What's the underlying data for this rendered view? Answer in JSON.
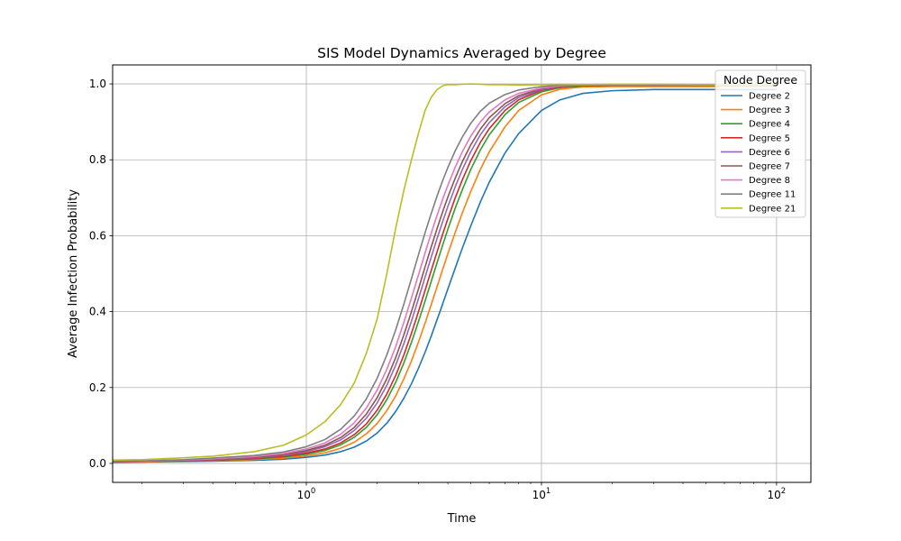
{
  "chart_data": {
    "type": "line",
    "title": "SIS Model Dynamics Averaged by Degree",
    "xlabel": "Time",
    "ylabel": "Average Infection Probability",
    "xscale": "log",
    "xlim": [
      0.15,
      140
    ],
    "ylim": [
      -0.05,
      1.05
    ],
    "x_ticks": [
      {
        "value": 1,
        "base": "10",
        "exp": "0"
      },
      {
        "value": 10,
        "base": "10",
        "exp": "1"
      },
      {
        "value": 100,
        "base": "10",
        "exp": "2"
      }
    ],
    "y_ticks": [
      {
        "value": 0.0,
        "label": "0.0"
      },
      {
        "value": 0.2,
        "label": "0.2"
      },
      {
        "value": 0.4,
        "label": "0.4"
      },
      {
        "value": 0.6,
        "label": "0.6"
      },
      {
        "value": 0.8,
        "label": "0.8"
      },
      {
        "value": 1.0,
        "label": "1.0"
      }
    ],
    "grid": true,
    "legend": {
      "title": "Node Degree",
      "placement": "top-right"
    },
    "x": [
      0.15,
      0.2,
      0.3,
      0.4,
      0.6,
      0.8,
      1.0,
      1.2,
      1.4,
      1.6,
      1.8,
      2.0,
      2.2,
      2.4,
      2.6,
      2.8,
      3.0,
      3.2,
      3.4,
      3.6,
      3.8,
      4.0,
      4.3,
      4.6,
      5.0,
      5.5,
      6.0,
      7.0,
      8.0,
      10.0,
      12.0,
      15.0,
      20.0,
      30.0,
      50.0,
      100.0
    ],
    "series": [
      {
        "name": "Degree 2",
        "color": "#1f77b4",
        "values": [
          0.003,
          0.004,
          0.005,
          0.006,
          0.008,
          0.011,
          0.016,
          0.022,
          0.031,
          0.043,
          0.059,
          0.08,
          0.106,
          0.137,
          0.172,
          0.21,
          0.251,
          0.293,
          0.336,
          0.379,
          0.42,
          0.46,
          0.515,
          0.566,
          0.625,
          0.689,
          0.741,
          0.818,
          0.869,
          0.93,
          0.958,
          0.975,
          0.982,
          0.985,
          0.985,
          0.985
        ]
      },
      {
        "name": "Degree 3",
        "color": "#ff7f0e",
        "values": [
          0.004,
          0.004,
          0.006,
          0.007,
          0.01,
          0.014,
          0.02,
          0.028,
          0.04,
          0.056,
          0.078,
          0.105,
          0.139,
          0.178,
          0.223,
          0.27,
          0.32,
          0.37,
          0.419,
          0.466,
          0.511,
          0.553,
          0.609,
          0.659,
          0.716,
          0.775,
          0.821,
          0.887,
          0.93,
          0.971,
          0.986,
          0.992,
          0.993,
          0.993,
          0.993,
          0.993
        ]
      },
      {
        "name": "Degree 4",
        "color": "#2ca02c",
        "values": [
          0.004,
          0.005,
          0.006,
          0.008,
          0.012,
          0.017,
          0.024,
          0.034,
          0.049,
          0.069,
          0.095,
          0.128,
          0.168,
          0.214,
          0.265,
          0.319,
          0.374,
          0.428,
          0.48,
          0.529,
          0.575,
          0.617,
          0.673,
          0.72,
          0.774,
          0.826,
          0.866,
          0.919,
          0.951,
          0.979,
          0.99,
          0.995,
          0.996,
          0.996,
          0.996,
          0.996
        ]
      },
      {
        "name": "Degree 5",
        "color": "#d62728",
        "values": [
          0.004,
          0.005,
          0.007,
          0.009,
          0.013,
          0.019,
          0.027,
          0.038,
          0.054,
          0.076,
          0.104,
          0.14,
          0.183,
          0.232,
          0.286,
          0.343,
          0.4,
          0.456,
          0.509,
          0.558,
          0.604,
          0.645,
          0.7,
          0.746,
          0.797,
          0.846,
          0.882,
          0.93,
          0.958,
          0.983,
          0.992,
          0.996,
          0.997,
          0.997,
          0.997,
          0.997
        ]
      },
      {
        "name": "Degree 6",
        "color": "#9467bd",
        "values": [
          0.005,
          0.006,
          0.008,
          0.01,
          0.015,
          0.021,
          0.031,
          0.044,
          0.062,
          0.087,
          0.119,
          0.159,
          0.206,
          0.259,
          0.316,
          0.375,
          0.434,
          0.491,
          0.544,
          0.593,
          0.637,
          0.677,
          0.729,
          0.773,
          0.821,
          0.866,
          0.898,
          0.94,
          0.964,
          0.985,
          0.993,
          0.997,
          0.998,
          0.998,
          0.998,
          0.998
        ]
      },
      {
        "name": "Degree 7",
        "color": "#8c564b",
        "values": [
          0.005,
          0.006,
          0.008,
          0.011,
          0.016,
          0.023,
          0.034,
          0.048,
          0.068,
          0.095,
          0.13,
          0.173,
          0.223,
          0.279,
          0.339,
          0.4,
          0.46,
          0.518,
          0.571,
          0.619,
          0.663,
          0.702,
          0.752,
          0.794,
          0.839,
          0.881,
          0.911,
          0.948,
          0.969,
          0.987,
          0.994,
          0.997,
          0.998,
          0.998,
          0.998,
          0.998
        ]
      },
      {
        "name": "Degree 8",
        "color": "#e377c2",
        "values": [
          0.005,
          0.006,
          0.009,
          0.012,
          0.018,
          0.026,
          0.038,
          0.054,
          0.077,
          0.107,
          0.146,
          0.193,
          0.248,
          0.308,
          0.372,
          0.436,
          0.497,
          0.555,
          0.607,
          0.654,
          0.696,
          0.733,
          0.781,
          0.82,
          0.862,
          0.9,
          0.926,
          0.958,
          0.975,
          0.989,
          0.995,
          0.998,
          0.998,
          0.998,
          0.998,
          0.998
        ]
      },
      {
        "name": "Degree 11",
        "color": "#7f7f7f",
        "values": [
          0.005,
          0.007,
          0.01,
          0.014,
          0.021,
          0.03,
          0.044,
          0.063,
          0.09,
          0.125,
          0.17,
          0.224,
          0.286,
          0.352,
          0.42,
          0.487,
          0.55,
          0.608,
          0.659,
          0.705,
          0.745,
          0.78,
          0.824,
          0.859,
          0.896,
          0.928,
          0.949,
          0.972,
          0.984,
          0.993,
          0.997,
          0.998,
          0.998,
          0.998,
          0.998,
          0.998
        ]
      },
      {
        "name": "Degree 21",
        "color": "#bcbd22",
        "values": [
          0.009,
          0.01,
          0.015,
          0.019,
          0.031,
          0.048,
          0.075,
          0.11,
          0.155,
          0.212,
          0.29,
          0.38,
          0.5,
          0.62,
          0.72,
          0.8,
          0.87,
          0.93,
          0.965,
          0.985,
          0.995,
          0.998,
          0.998,
          0.999,
          1.0,
          0.999,
          0.998,
          0.998,
          0.997,
          0.998,
          0.999,
          0.998,
          0.999,
          0.999,
          0.998,
          0.999
        ]
      }
    ]
  }
}
